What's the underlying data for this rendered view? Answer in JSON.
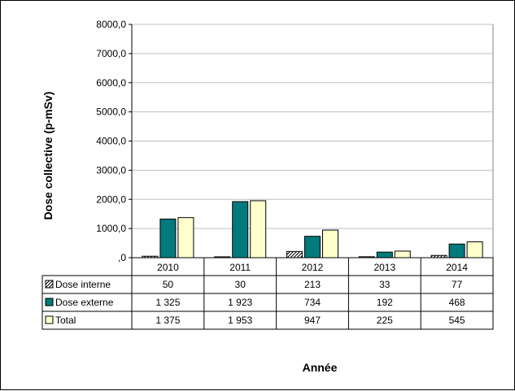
{
  "chart_data": {
    "type": "bar",
    "categories": [
      "2010",
      "2011",
      "2012",
      "2013",
      "2014"
    ],
    "series": [
      {
        "name": "Dose interne",
        "values": [
          50,
          30,
          213,
          33,
          77
        ],
        "labels": [
          "50",
          "30",
          "213",
          "33",
          "77"
        ],
        "color": "#ffffff",
        "pattern": "diagonal-hatch"
      },
      {
        "name": "Dose externe",
        "values": [
          1325,
          1923,
          734,
          192,
          468
        ],
        "labels": [
          "1 325",
          "1 923",
          "734",
          "192",
          "468"
        ],
        "color": "#007a7a"
      },
      {
        "name": "Total",
        "values": [
          1375,
          1953,
          947,
          225,
          545
        ],
        "labels": [
          "1 375",
          "1 953",
          "947",
          "225",
          "545"
        ],
        "color": "#ffffcc"
      }
    ],
    "ylim": [
      0,
      8000
    ],
    "yticks": [
      ",0",
      "1000,0",
      "2000,0",
      "3000,0",
      "4000,0",
      "5000,0",
      "6000,0",
      "7000,0",
      "8000,0"
    ],
    "ylabel": "Dose collective (p-mSv)",
    "xlabel": "Année",
    "grid": true,
    "data_table": true
  }
}
